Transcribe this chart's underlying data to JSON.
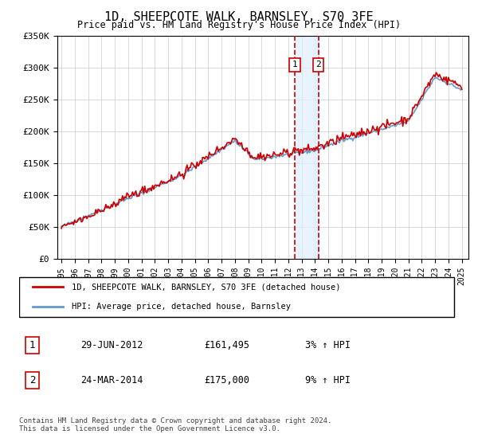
{
  "title": "1D, SHEEPCOTE WALK, BARNSLEY, S70 3FE",
  "subtitle": "Price paid vs. HM Land Registry's House Price Index (HPI)",
  "legend_line1": "1D, SHEEPCOTE WALK, BARNSLEY, S70 3FE (detached house)",
  "legend_line2": "HPI: Average price, detached house, Barnsley",
  "transaction1_date": "29-JUN-2012",
  "transaction1_price": "£161,495",
  "transaction1_hpi": "3% ↑ HPI",
  "transaction2_date": "24-MAR-2014",
  "transaction2_price": "£175,000",
  "transaction2_hpi": "9% ↑ HPI",
  "footer": "Contains HM Land Registry data © Crown copyright and database right 2024.\nThis data is licensed under the Open Government Licence v3.0.",
  "hpi_color": "#6699cc",
  "price_color": "#cc0000",
  "marker_color": "#cc0000",
  "shade_color": "#ddeeff",
  "transaction1_year": 2012.5,
  "transaction2_year": 2014.25,
  "ylim": [
    0,
    350000
  ],
  "xlim_start": 1995,
  "xlim_end": 2025.5
}
